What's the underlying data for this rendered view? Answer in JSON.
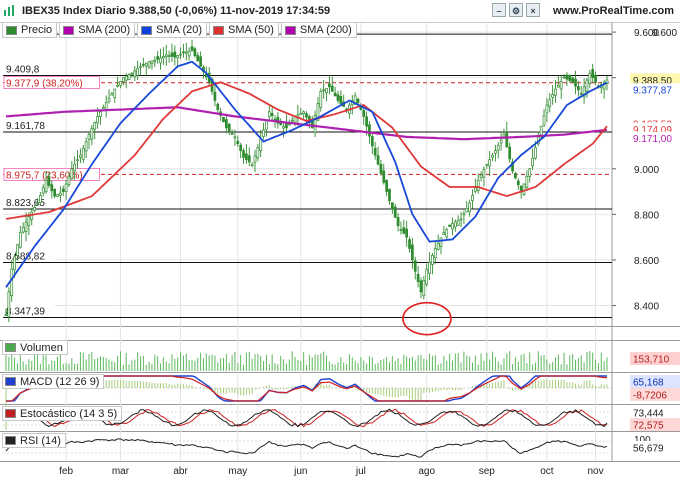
{
  "header": {
    "title": "IBEX35 Index Diario 9.388,50 (-0,06%) 11-nov-2019 17:34:59",
    "site": "www.ProRealTime.com"
  },
  "legend": [
    {
      "label": "Precio",
      "color": "#2e8b2e"
    },
    {
      "label": "SMA (200)",
      "color": "#b000b0"
    },
    {
      "label": "SMA (20)",
      "color": "#1040e0"
    },
    {
      "label": "SMA (50)",
      "color": "#e03030"
    },
    {
      "label": "SMA (200)",
      "color": "#b000b0"
    }
  ],
  "colors": {
    "up": "#2e8b2e",
    "down": "#2e8b2e",
    "sma20": "#1848d8",
    "sma50": "#e03838",
    "sma200": "#b020b0",
    "fib": "#d02020",
    "circle": "#e02020",
    "grid": "#e4e4e4",
    "axis_bg": "#ffffff"
  },
  "annotations": {
    "h_levels": [
      {
        "label": "9.591,29",
        "value": 9591.29,
        "style": "solid"
      },
      {
        "label": "9.409,8",
        "value": 9409.8,
        "style": "solid"
      },
      {
        "label": "9.377,9 (38,20%)",
        "value": 9377.9,
        "style": "dashed-red"
      },
      {
        "label": "9.161,78",
        "value": 9161.78,
        "style": "solid"
      },
      {
        "label": "8.975,7 (23,60%)",
        "value": 8975.7,
        "style": "dashed-red"
      },
      {
        "label": "8.823,65",
        "value": 8823.65,
        "style": "solid"
      },
      {
        "label": "8.588,82",
        "value": 8588.82,
        "style": "solid"
      },
      {
        "label": "8.347,39",
        "value": 8347.39,
        "style": "solid"
      }
    ],
    "circle_marker": {
      "date_index": 145,
      "value": 8430
    }
  },
  "right_labels": {
    "price": "9.388,50",
    "sma20": "9.377,87",
    "sma50a": "9.187,52",
    "sma50b": "9.174,09",
    "sma200": "9.171,00",
    "volume": "153,710",
    "macd1": "65,168",
    "macd2": "-8,7206",
    "stoch1": "73,444",
    "stoch2": "72,575",
    "rsi_top": "100",
    "rsi": "56,679"
  },
  "panels": {
    "volume": {
      "label": "Volumen"
    },
    "macd": {
      "label": "MACD (12 26 9)"
    },
    "stoch": {
      "label": "Estocástico (14 3 5)"
    },
    "rsi": {
      "label": "RSI (14)"
    }
  },
  "chart_data": {
    "type": "candlestick",
    "title": "IBEX35 Index Diario 9.388,50 (-0,06%) 11-nov-2019 17:34:59",
    "xlabel": "",
    "ylabel": "",
    "x_ticks": [
      "feb",
      "mar",
      "abr",
      "may",
      "jun",
      "jul",
      "ago",
      "sep",
      "oct",
      "nov"
    ],
    "y_ticks": [
      {
        "label": "9.600",
        "value": 9600
      },
      {
        "label": "9.400",
        "value": 9400
      },
      {
        "label": "9.000",
        "value": 9000
      },
      {
        "label": "8.800",
        "value": 8800
      },
      {
        "label": "8.600",
        "value": 8600
      },
      {
        "label": "8.400",
        "value": 8400
      }
    ],
    "ylim": [
      8310,
      9640
    ],
    "close_anchors": [
      [
        0,
        8360
      ],
      [
        2,
        8560
      ],
      [
        5,
        8720
      ],
      [
        8,
        8790
      ],
      [
        11,
        8850
      ],
      [
        14,
        8950
      ],
      [
        17,
        8880
      ],
      [
        20,
        8900
      ],
      [
        23,
        9000
      ],
      [
        26,
        9060
      ],
      [
        29,
        9150
      ],
      [
        32,
        9230
      ],
      [
        35,
        9290
      ],
      [
        38,
        9350
      ],
      [
        41,
        9400
      ],
      [
        44,
        9420
      ],
      [
        47,
        9450
      ],
      [
        50,
        9470
      ],
      [
        53,
        9480
      ],
      [
        56,
        9500
      ],
      [
        59,
        9490
      ],
      [
        62,
        9510
      ],
      [
        65,
        9520
      ],
      [
        68,
        9450
      ],
      [
        71,
        9380
      ],
      [
        74,
        9260
      ],
      [
        77,
        9180
      ],
      [
        80,
        9140
      ],
      [
        83,
        9050
      ],
      [
        86,
        9020
      ],
      [
        89,
        9130
      ],
      [
        92,
        9250
      ],
      [
        95,
        9200
      ],
      [
        98,
        9180
      ],
      [
        101,
        9230
      ],
      [
        104,
        9250
      ],
      [
        107,
        9180
      ],
      [
        110,
        9340
      ],
      [
        113,
        9360
      ],
      [
        116,
        9300
      ],
      [
        119,
        9260
      ],
      [
        122,
        9320
      ],
      [
        125,
        9230
      ],
      [
        128,
        9100
      ],
      [
        131,
        8980
      ],
      [
        134,
        8860
      ],
      [
        137,
        8750
      ],
      [
        140,
        8700
      ],
      [
        143,
        8550
      ],
      [
        145,
        8460
      ],
      [
        147,
        8560
      ],
      [
        150,
        8650
      ],
      [
        153,
        8720
      ],
      [
        156,
        8760
      ],
      [
        159,
        8780
      ],
      [
        162,
        8850
      ],
      [
        165,
        8950
      ],
      [
        168,
        9020
      ],
      [
        171,
        9080
      ],
      [
        174,
        9150
      ],
      [
        177,
        8990
      ],
      [
        180,
        8900
      ],
      [
        183,
        9000
      ],
      [
        186,
        9140
      ],
      [
        189,
        9280
      ],
      [
        192,
        9350
      ],
      [
        195,
        9400
      ],
      [
        198,
        9380
      ],
      [
        201,
        9330
      ],
      [
        204,
        9420
      ],
      [
        207,
        9360
      ],
      [
        210,
        9390
      ]
    ],
    "sma20_anchors": [
      [
        0,
        8480
      ],
      [
        10,
        8660
      ],
      [
        20,
        8820
      ],
      [
        30,
        9020
      ],
      [
        40,
        9200
      ],
      [
        50,
        9330
      ],
      [
        60,
        9450
      ],
      [
        65,
        9470
      ],
      [
        70,
        9420
      ],
      [
        80,
        9260
      ],
      [
        90,
        9120
      ],
      [
        100,
        9170
      ],
      [
        110,
        9230
      ],
      [
        120,
        9300
      ],
      [
        128,
        9250
      ],
      [
        136,
        9030
      ],
      [
        142,
        8800
      ],
      [
        148,
        8680
      ],
      [
        156,
        8690
      ],
      [
        164,
        8790
      ],
      [
        172,
        8960
      ],
      [
        180,
        9060
      ],
      [
        188,
        9140
      ],
      [
        196,
        9280
      ],
      [
        204,
        9340
      ],
      [
        210,
        9378
      ]
    ],
    "sma50_anchors": [
      [
        0,
        8780
      ],
      [
        15,
        8810
      ],
      [
        30,
        8880
      ],
      [
        45,
        9060
      ],
      [
        55,
        9220
      ],
      [
        65,
        9340
      ],
      [
        75,
        9380
      ],
      [
        85,
        9330
      ],
      [
        95,
        9260
      ],
      [
        105,
        9210
      ],
      [
        115,
        9240
      ],
      [
        125,
        9280
      ],
      [
        135,
        9180
      ],
      [
        145,
        9010
      ],
      [
        155,
        8920
      ],
      [
        165,
        8920
      ],
      [
        175,
        8880
      ],
      [
        185,
        8920
      ],
      [
        195,
        9020
      ],
      [
        205,
        9110
      ],
      [
        210,
        9187
      ]
    ],
    "sma200_anchors": [
      [
        0,
        9230
      ],
      [
        20,
        9250
      ],
      [
        40,
        9260
      ],
      [
        60,
        9270
      ],
      [
        80,
        9230
      ],
      [
        100,
        9200
      ],
      [
        120,
        9170
      ],
      [
        140,
        9140
      ],
      [
        160,
        9130
      ],
      [
        180,
        9140
      ],
      [
        195,
        9150
      ],
      [
        210,
        9171
      ]
    ],
    "indicators": {
      "volume_last": 153.71,
      "macd_last": 65.168,
      "macd_signal_last": -8.7206,
      "stoch_k_last": 73.444,
      "stoch_d_last": 72.575,
      "rsi_last": 56.679
    }
  }
}
